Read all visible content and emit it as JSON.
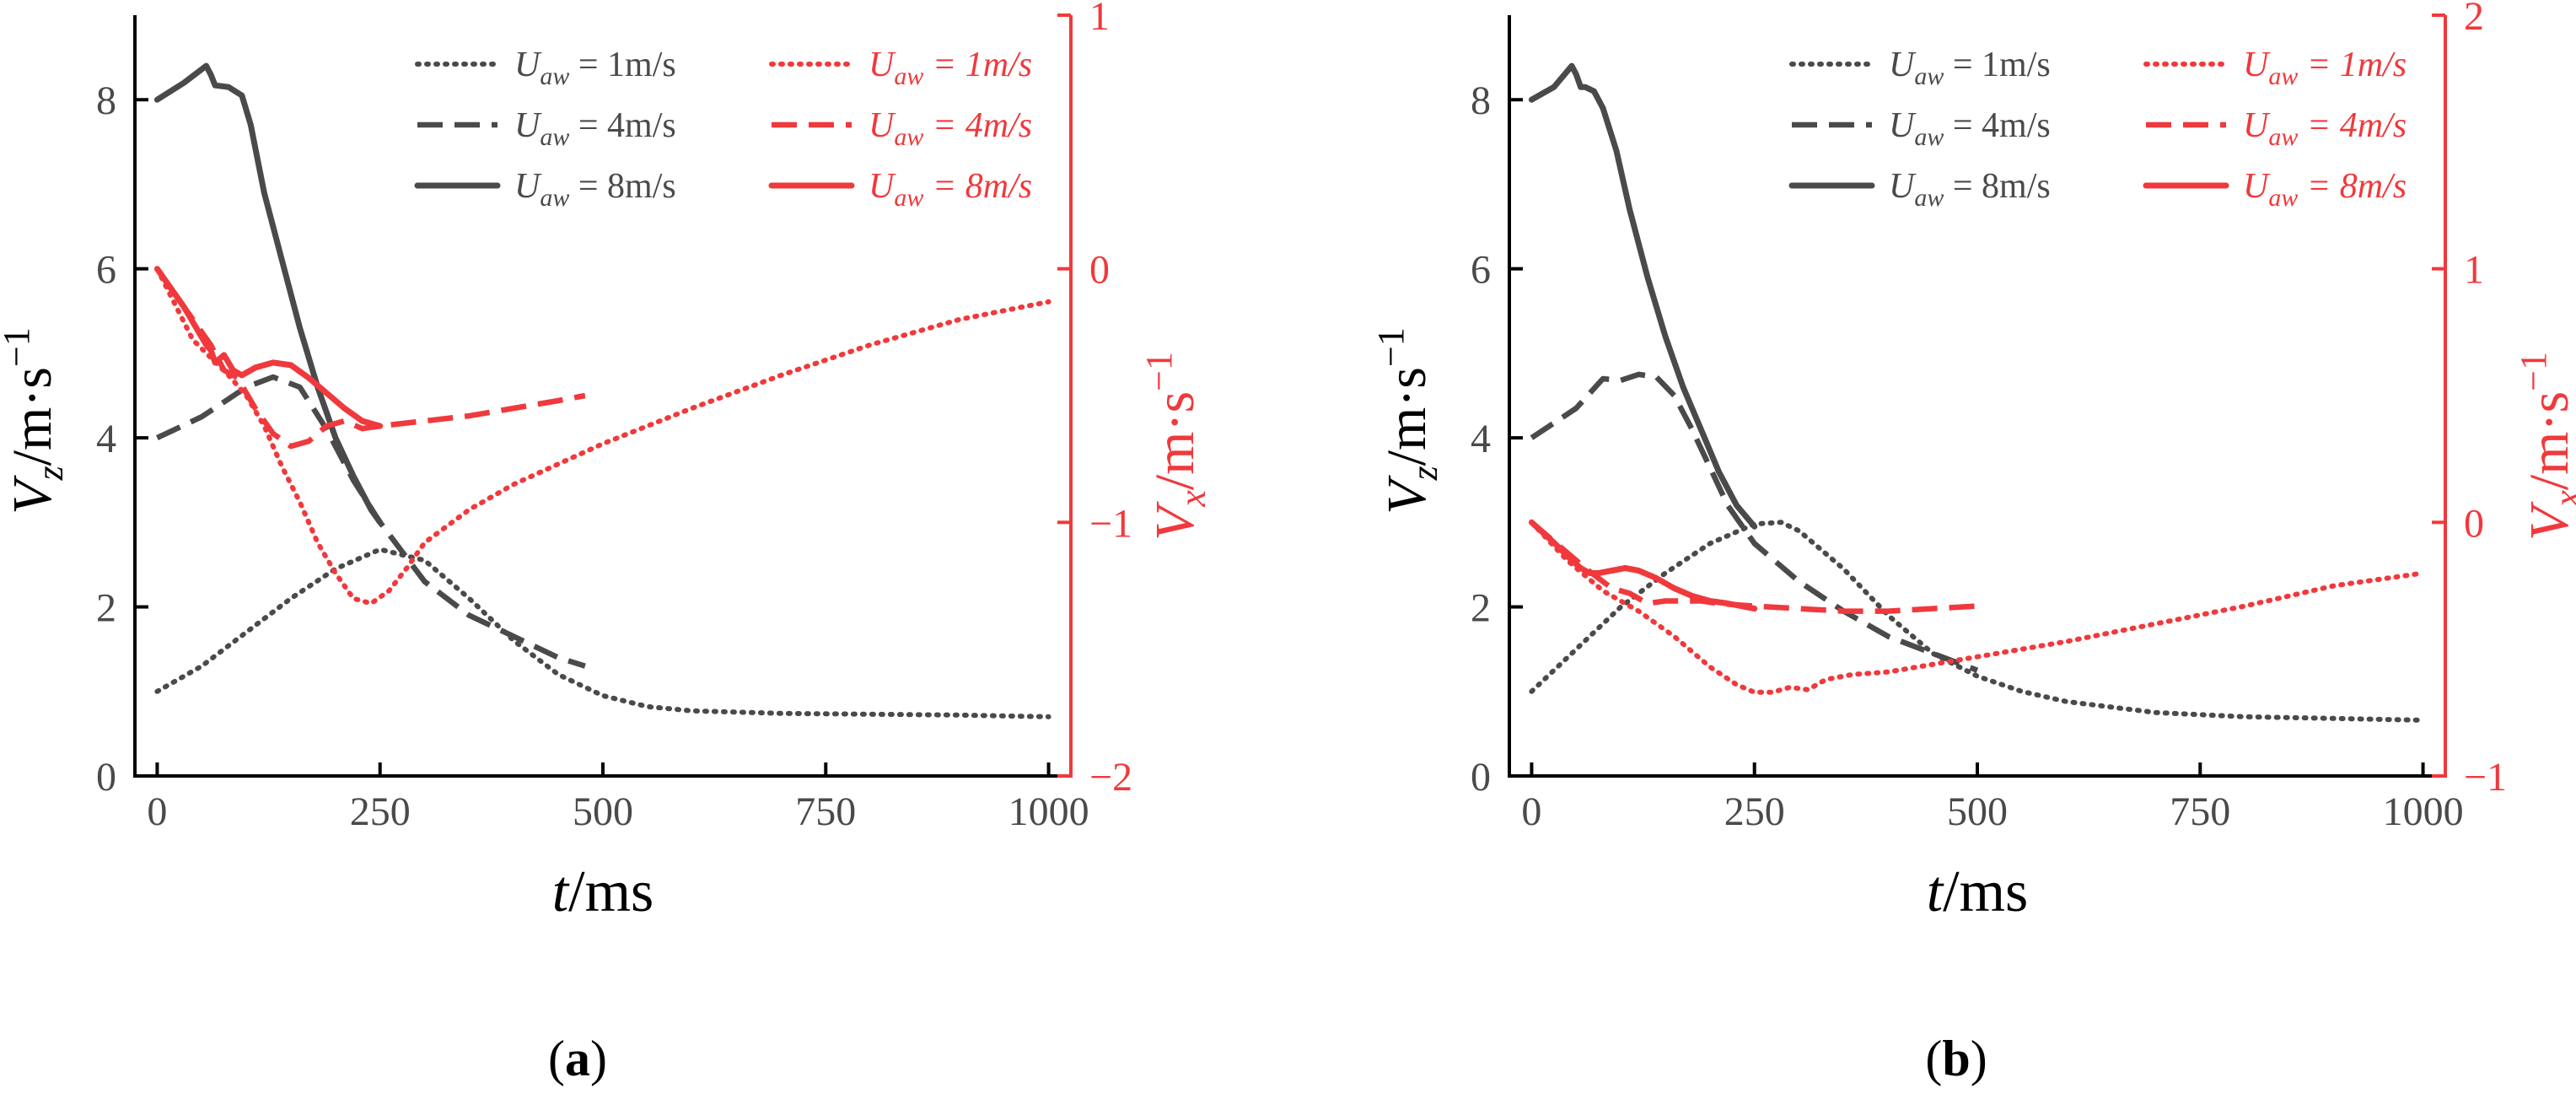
{
  "colors": {
    "left": "#4a4a4a",
    "right": "#f0393c",
    "frame": "#000000"
  },
  "legend": {
    "left": [
      {
        "sym": "U",
        "sub": "aw",
        "eq": " = 1m/s",
        "dash": "dotted"
      },
      {
        "sym": "U",
        "sub": "aw",
        "eq": " = 4m/s",
        "dash": "dashed"
      },
      {
        "sym": "U",
        "sub": "aw",
        "eq": " = 8m/s",
        "dash": "solid"
      }
    ],
    "right": [
      {
        "sym": "U",
        "sub": "aw",
        "eq": " = 1m/s",
        "dash": "dotted"
      },
      {
        "sym": "U",
        "sub": "aw",
        "eq": " = 4m/s",
        "dash": "dashed"
      },
      {
        "sym": "U",
        "sub": "aw",
        "eq": " = 8m/s",
        "dash": "solid"
      }
    ]
  },
  "chart_data": [
    {
      "type": "line",
      "caption": {
        "open": "(",
        "letter": "a",
        "close": ")"
      },
      "xlabel": {
        "var": "t",
        "unit": "/ms"
      },
      "ylabel": {
        "var": "V",
        "sub": "z",
        "unit": "/m·s",
        "sup": "−1"
      },
      "y2label": {
        "var": "V",
        "sub": "x",
        "unit": "/m·s",
        "sup": "−1"
      },
      "xlim": [
        -25,
        1025
      ],
      "ylim": [
        0,
        9
      ],
      "y2lim": [
        -2,
        1
      ],
      "xticks": [
        0,
        250,
        500,
        750,
        1000
      ],
      "xtick_labels": [
        "0",
        "250",
        "500",
        "750",
        "1000"
      ],
      "yticks": [
        0,
        2,
        4,
        6,
        8
      ],
      "ytick_labels": [
        "0",
        "2",
        "4",
        "6",
        "8"
      ],
      "y2ticks": [
        -2,
        -1,
        0,
        1
      ],
      "y2tick_labels": [
        "−2",
        "−1",
        "0",
        "1"
      ],
      "series": [
        {
          "name": "Vz, Uaw = 1m/s",
          "axis": "left",
          "dash": "dotted",
          "x": [
            0,
            50,
            100,
            150,
            200,
            250,
            300,
            350,
            400,
            450,
            500,
            550,
            600,
            700,
            800,
            900,
            1000
          ],
          "y": [
            1.0,
            1.3,
            1.7,
            2.1,
            2.45,
            2.68,
            2.55,
            2.1,
            1.6,
            1.2,
            0.95,
            0.82,
            0.77,
            0.74,
            0.73,
            0.72,
            0.7
          ]
        },
        {
          "name": "Vz, Uaw = 4m/s",
          "axis": "left",
          "dash": "dashed",
          "x": [
            0,
            50,
            100,
            130,
            160,
            190,
            220,
            250,
            300,
            350,
            400,
            450,
            480
          ],
          "y": [
            4.0,
            4.25,
            4.6,
            4.72,
            4.6,
            4.1,
            3.5,
            3.0,
            2.3,
            1.9,
            1.65,
            1.4,
            1.3
          ]
        },
        {
          "name": "Vz, Uaw = 8m/s",
          "axis": "left",
          "dash": "solid",
          "x": [
            0,
            30,
            55,
            60,
            65,
            80,
            95,
            105,
            120,
            140,
            160,
            180,
            200,
            220,
            240,
            250
          ],
          "y": [
            8.0,
            8.2,
            8.4,
            8.3,
            8.17,
            8.15,
            8.05,
            7.7,
            6.9,
            6.1,
            5.3,
            4.6,
            4.0,
            3.55,
            3.15,
            3.0
          ]
        },
        {
          "name": "Vx, Uaw = 1m/s",
          "axis": "right",
          "dash": "dotted",
          "x": [
            0,
            40,
            80,
            100,
            120,
            140,
            160,
            180,
            200,
            220,
            240,
            260,
            280,
            300,
            350,
            400,
            500,
            600,
            700,
            800,
            900,
            1000
          ],
          "y": [
            0.0,
            -0.28,
            -0.42,
            -0.5,
            -0.62,
            -0.78,
            -0.92,
            -1.08,
            -1.2,
            -1.3,
            -1.32,
            -1.27,
            -1.18,
            -1.08,
            -0.95,
            -0.85,
            -0.69,
            -0.55,
            -0.42,
            -0.3,
            -0.2,
            -0.13
          ]
        },
        {
          "name": "Vx, Uaw = 4m/s",
          "axis": "right",
          "dash": "dashed",
          "x": [
            0,
            40,
            60,
            75,
            90,
            110,
            130,
            150,
            170,
            190,
            210,
            230,
            250,
            300,
            350,
            400,
            450,
            480
          ],
          "y": [
            0.0,
            -0.2,
            -0.3,
            -0.4,
            -0.43,
            -0.55,
            -0.65,
            -0.7,
            -0.68,
            -0.62,
            -0.6,
            -0.63,
            -0.62,
            -0.6,
            -0.58,
            -0.55,
            -0.52,
            -0.5
          ]
        },
        {
          "name": "Vx, Uaw = 8m/s",
          "axis": "right",
          "dash": "solid",
          "x": [
            0,
            30,
            55,
            60,
            65,
            75,
            85,
            95,
            110,
            130,
            150,
            170,
            190,
            210,
            230,
            250
          ],
          "y": [
            0.0,
            -0.15,
            -0.3,
            -0.32,
            -0.37,
            -0.34,
            -0.4,
            -0.42,
            -0.39,
            -0.37,
            -0.38,
            -0.43,
            -0.49,
            -0.55,
            -0.6,
            -0.62
          ]
        }
      ]
    },
    {
      "type": "line",
      "caption": {
        "open": "(",
        "letter": "b",
        "close": ")"
      },
      "xlabel": {
        "var": "t",
        "unit": "/ms"
      },
      "ylabel": {
        "var": "V",
        "sub": "z",
        "unit": "/m·s",
        "sup": "−1"
      },
      "y2label": {
        "var": "V",
        "sub": "x",
        "unit": "/m·s",
        "sup": "−1"
      },
      "xlim": [
        -25,
        1025
      ],
      "ylim": [
        0,
        9
      ],
      "y2lim": [
        -1,
        2
      ],
      "xticks": [
        0,
        250,
        500,
        750,
        1000
      ],
      "xtick_labels": [
        "0",
        "250",
        "500",
        "750",
        "1000"
      ],
      "yticks": [
        0,
        2,
        4,
        6,
        8
      ],
      "ytick_labels": [
        "0",
        "2",
        "4",
        "6",
        "8"
      ],
      "y2ticks": [
        -1,
        0,
        1,
        2
      ],
      "y2tick_labels": [
        "−1",
        "0",
        "1",
        "2"
      ],
      "series": [
        {
          "name": "Vz, Uaw = 1m/s",
          "axis": "left",
          "dash": "dotted",
          "x": [
            0,
            50,
            100,
            150,
            200,
            250,
            280,
            300,
            350,
            400,
            450,
            500,
            550,
            600,
            700,
            800,
            900,
            1000
          ],
          "y": [
            1.0,
            1.5,
            2.0,
            2.4,
            2.75,
            2.98,
            3.0,
            2.9,
            2.45,
            1.9,
            1.45,
            1.18,
            1.0,
            0.88,
            0.75,
            0.7,
            0.68,
            0.66
          ]
        },
        {
          "name": "Vz, Uaw = 4m/s",
          "axis": "left",
          "dash": "dashed",
          "x": [
            0,
            50,
            80,
            100,
            120,
            140,
            160,
            180,
            200,
            220,
            250,
            300,
            350,
            400,
            450,
            500
          ],
          "y": [
            4.0,
            4.35,
            4.7,
            4.68,
            4.75,
            4.72,
            4.5,
            4.1,
            3.65,
            3.2,
            2.75,
            2.3,
            1.95,
            1.65,
            1.45,
            1.25
          ]
        },
        {
          "name": "Vz, Uaw = 8m/s",
          "axis": "left",
          "dash": "solid",
          "x": [
            0,
            25,
            45,
            50,
            55,
            60,
            70,
            80,
            95,
            110,
            130,
            150,
            170,
            190,
            210,
            230,
            250
          ],
          "y": [
            8.0,
            8.15,
            8.4,
            8.3,
            8.15,
            8.15,
            8.1,
            7.9,
            7.4,
            6.7,
            5.9,
            5.2,
            4.6,
            4.1,
            3.6,
            3.2,
            2.95
          ]
        },
        {
          "name": "Vx, Uaw = 1m/s",
          "axis": "right",
          "dash": "dotted",
          "x": [
            0,
            40,
            80,
            120,
            160,
            200,
            230,
            250,
            270,
            290,
            310,
            330,
            360,
            400,
            450,
            500,
            600,
            700,
            800,
            900,
            1000
          ],
          "y": [
            0.0,
            -0.15,
            -0.27,
            -0.35,
            -0.45,
            -0.57,
            -0.64,
            -0.67,
            -0.67,
            -0.65,
            -0.66,
            -0.62,
            -0.6,
            -0.59,
            -0.56,
            -0.53,
            -0.47,
            -0.4,
            -0.33,
            -0.25,
            -0.2
          ]
        },
        {
          "name": "Vx, Uaw = 4m/s",
          "axis": "right",
          "dash": "dashed",
          "x": [
            0,
            40,
            60,
            75,
            90,
            110,
            130,
            150,
            170,
            190,
            210,
            250,
            300,
            350,
            400,
            450,
            500
          ],
          "y": [
            0.0,
            -0.12,
            -0.18,
            -0.22,
            -0.26,
            -0.28,
            -0.32,
            -0.31,
            -0.31,
            -0.31,
            -0.32,
            -0.33,
            -0.34,
            -0.35,
            -0.35,
            -0.34,
            -0.33
          ]
        },
        {
          "name": "Vx, Uaw = 8m/s",
          "axis": "right",
          "dash": "solid",
          "x": [
            0,
            25,
            45,
            55,
            65,
            75,
            90,
            105,
            120,
            140,
            160,
            180,
            200,
            220,
            250
          ],
          "y": [
            0.0,
            -0.08,
            -0.15,
            -0.18,
            -0.2,
            -0.2,
            -0.19,
            -0.18,
            -0.19,
            -0.22,
            -0.26,
            -0.29,
            -0.31,
            -0.32,
            -0.34
          ]
        }
      ]
    }
  ]
}
